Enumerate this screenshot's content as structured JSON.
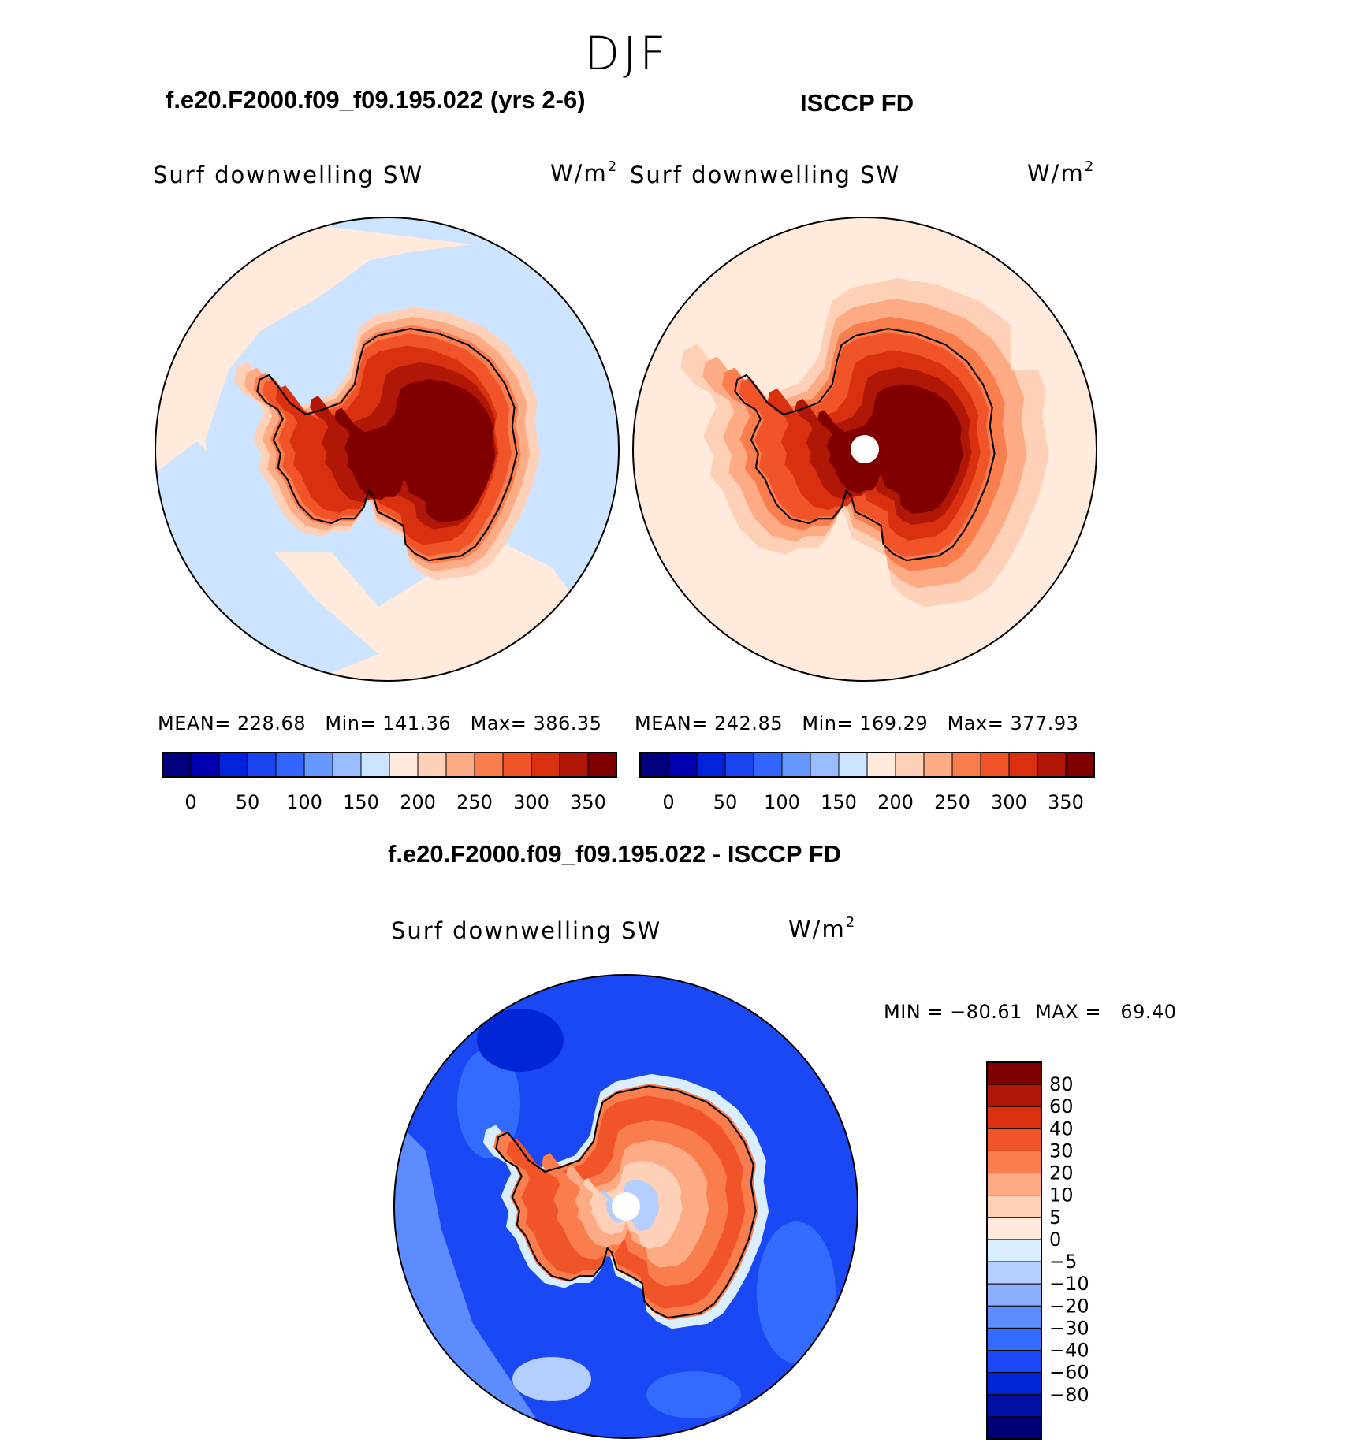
{
  "page_title": "DJF",
  "colors": {
    "blue_ramp": [
      "#00007f",
      "#0000b2",
      "#0022dd",
      "#1a44f0",
      "#3366ff",
      "#6699ff",
      "#99bbff",
      "#cce4ff"
    ],
    "red_ramp": [
      "#ffeadb",
      "#fdd0b7",
      "#fcab85",
      "#fa7d4e",
      "#f2542a",
      "#d9300f",
      "#b01707",
      "#800000"
    ],
    "diff_ramp": [
      "#7f0000",
      "#b01707",
      "#d9300f",
      "#f2542a",
      "#fa7d4e",
      "#fcab85",
      "#fdd0b7",
      "#ffeadb",
      "#d9eeff",
      "#b3ceff",
      "#8cb0ff",
      "#5c8cff",
      "#336bff",
      "#1a48f5",
      "#0026d6",
      "#0011a3",
      "#000076"
    ]
  },
  "chart_data": [
    {
      "type": "heatmap",
      "projection": "south-polar-stereographic",
      "title": "f.e20.F2000.f09_f09.195.022 (yrs 2-6)",
      "variable": "Surf downwelling SW",
      "units": "W/m",
      "units_sup": "2",
      "stats": {
        "mean_label": "MEAN=",
        "mean": "228.68",
        "min_label": "Min=",
        "min": "141.36",
        "max_label": "Max=",
        "max": "386.35"
      },
      "levels": [
        0,
        25,
        50,
        75,
        100,
        125,
        150,
        175,
        200,
        225,
        250,
        275,
        300,
        325,
        350
      ],
      "colorbar_ticks": [
        "0",
        "50",
        "100",
        "150",
        "200",
        "250",
        "300",
        "350"
      ],
      "field_summary": {
        "antarctic_interior": ">350",
        "antarctic_coast": "300-350",
        "southern_ocean": "175-225"
      }
    },
    {
      "type": "heatmap",
      "projection": "south-polar-stereographic",
      "title": "ISCCP FD",
      "variable": "Surf downwelling SW",
      "units": "W/m",
      "units_sup": "2",
      "stats": {
        "mean_label": "MEAN=",
        "mean": "242.85",
        "min_label": "Min=",
        "min": "169.29",
        "max_label": "Max=",
        "max": "377.93"
      },
      "levels": [
        0,
        25,
        50,
        75,
        100,
        125,
        150,
        175,
        200,
        225,
        250,
        275,
        300,
        325,
        350
      ],
      "colorbar_ticks": [
        "0",
        "50",
        "100",
        "150",
        "200",
        "250",
        "300",
        "350"
      ],
      "field_summary": {
        "antarctic_interior": ">350",
        "antarctic_coast": "275-325",
        "southern_ocean": "200-250"
      }
    },
    {
      "type": "heatmap",
      "projection": "south-polar-stereographic",
      "title": "f.e20.F2000.f09_f09.195.022 - ISCCP FD",
      "variable": "Surf downwelling SW",
      "units": "W/m",
      "units_sup": "2",
      "stats_text": "MIN = −80.61  MAX =   69.40",
      "levels": [
        -80,
        -60,
        -40,
        -30,
        -20,
        -10,
        -5,
        0,
        5,
        10,
        20,
        30,
        40,
        60,
        80
      ],
      "colorbar_ticks": [
        "80",
        "60",
        "40",
        "30",
        "20",
        "10",
        "5",
        "0",
        "−5",
        "−10",
        "−20",
        "−30",
        "−40",
        "−60",
        "−80"
      ],
      "field_summary": {
        "antarctica": "10-40",
        "southern_ocean": "-40 to -20"
      }
    }
  ]
}
